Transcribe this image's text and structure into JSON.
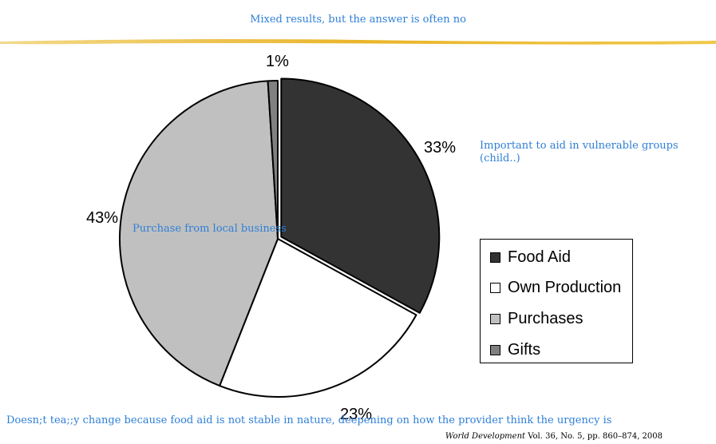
{
  "header": {
    "subtitle": "Mixed results, but the answer is often no"
  },
  "chart_data": {
    "type": "pie",
    "slices": [
      {
        "label": "Food Aid",
        "value": 33,
        "display": "33%",
        "color": "#333333",
        "exploded": true
      },
      {
        "label": "Own Production",
        "value": 23,
        "display": "23%",
        "color": "#ffffff"
      },
      {
        "label": "Purchases",
        "value": 43,
        "display": "43%",
        "color": "#c0c0c0"
      },
      {
        "label": "Gifts",
        "value": 1,
        "display": "1%",
        "color": "#808080"
      }
    ],
    "legend": {
      "placement": "right",
      "entries": [
        "Food Aid",
        "Own Production",
        "Purchases",
        "Gifts"
      ]
    }
  },
  "annotations": {
    "vulnerable_groups_line1": "Important to aid in vulnerable groups",
    "vulnerable_groups_line2": "(child..)",
    "local_business": "Purchase from local business",
    "bottom_note": "Doesn;t tea;;y change because food aid is not stable in nature, deepening on how the provider think the urgency is"
  },
  "citation": {
    "journal": "World Development",
    "details": " Vol. 36, No. 5, pp. 860–874, 2008"
  }
}
